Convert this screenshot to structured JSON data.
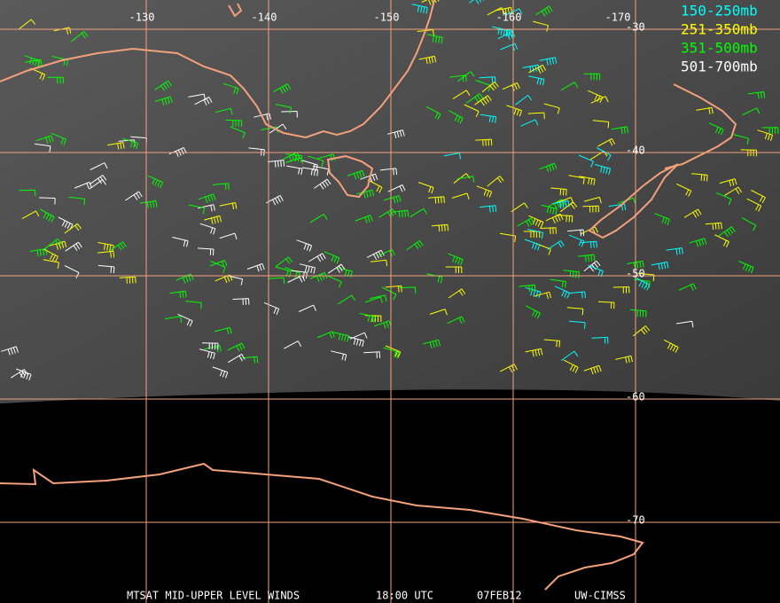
{
  "map": {
    "lon_labels": [
      "-130",
      "-140",
      "-150",
      "-160",
      "-170"
    ],
    "lat_labels": [
      "-30",
      "-40",
      "-50",
      "-60",
      "-70"
    ],
    "legend": [
      {
        "label": "150-250mb",
        "color": "#00ffff"
      },
      {
        "label": "251-350mb",
        "color": "#ffff00"
      },
      {
        "label": "351-500mb",
        "color": "#00ff00"
      },
      {
        "label": "501-700mb",
        "color": "#ffffff"
      }
    ],
    "footer": {
      "product": "MTSAT MID-UPPER LEVEL WINDS",
      "time": "18:00 UTC",
      "date": "07FEB12",
      "source": "UW-CIMSS"
    }
  }
}
